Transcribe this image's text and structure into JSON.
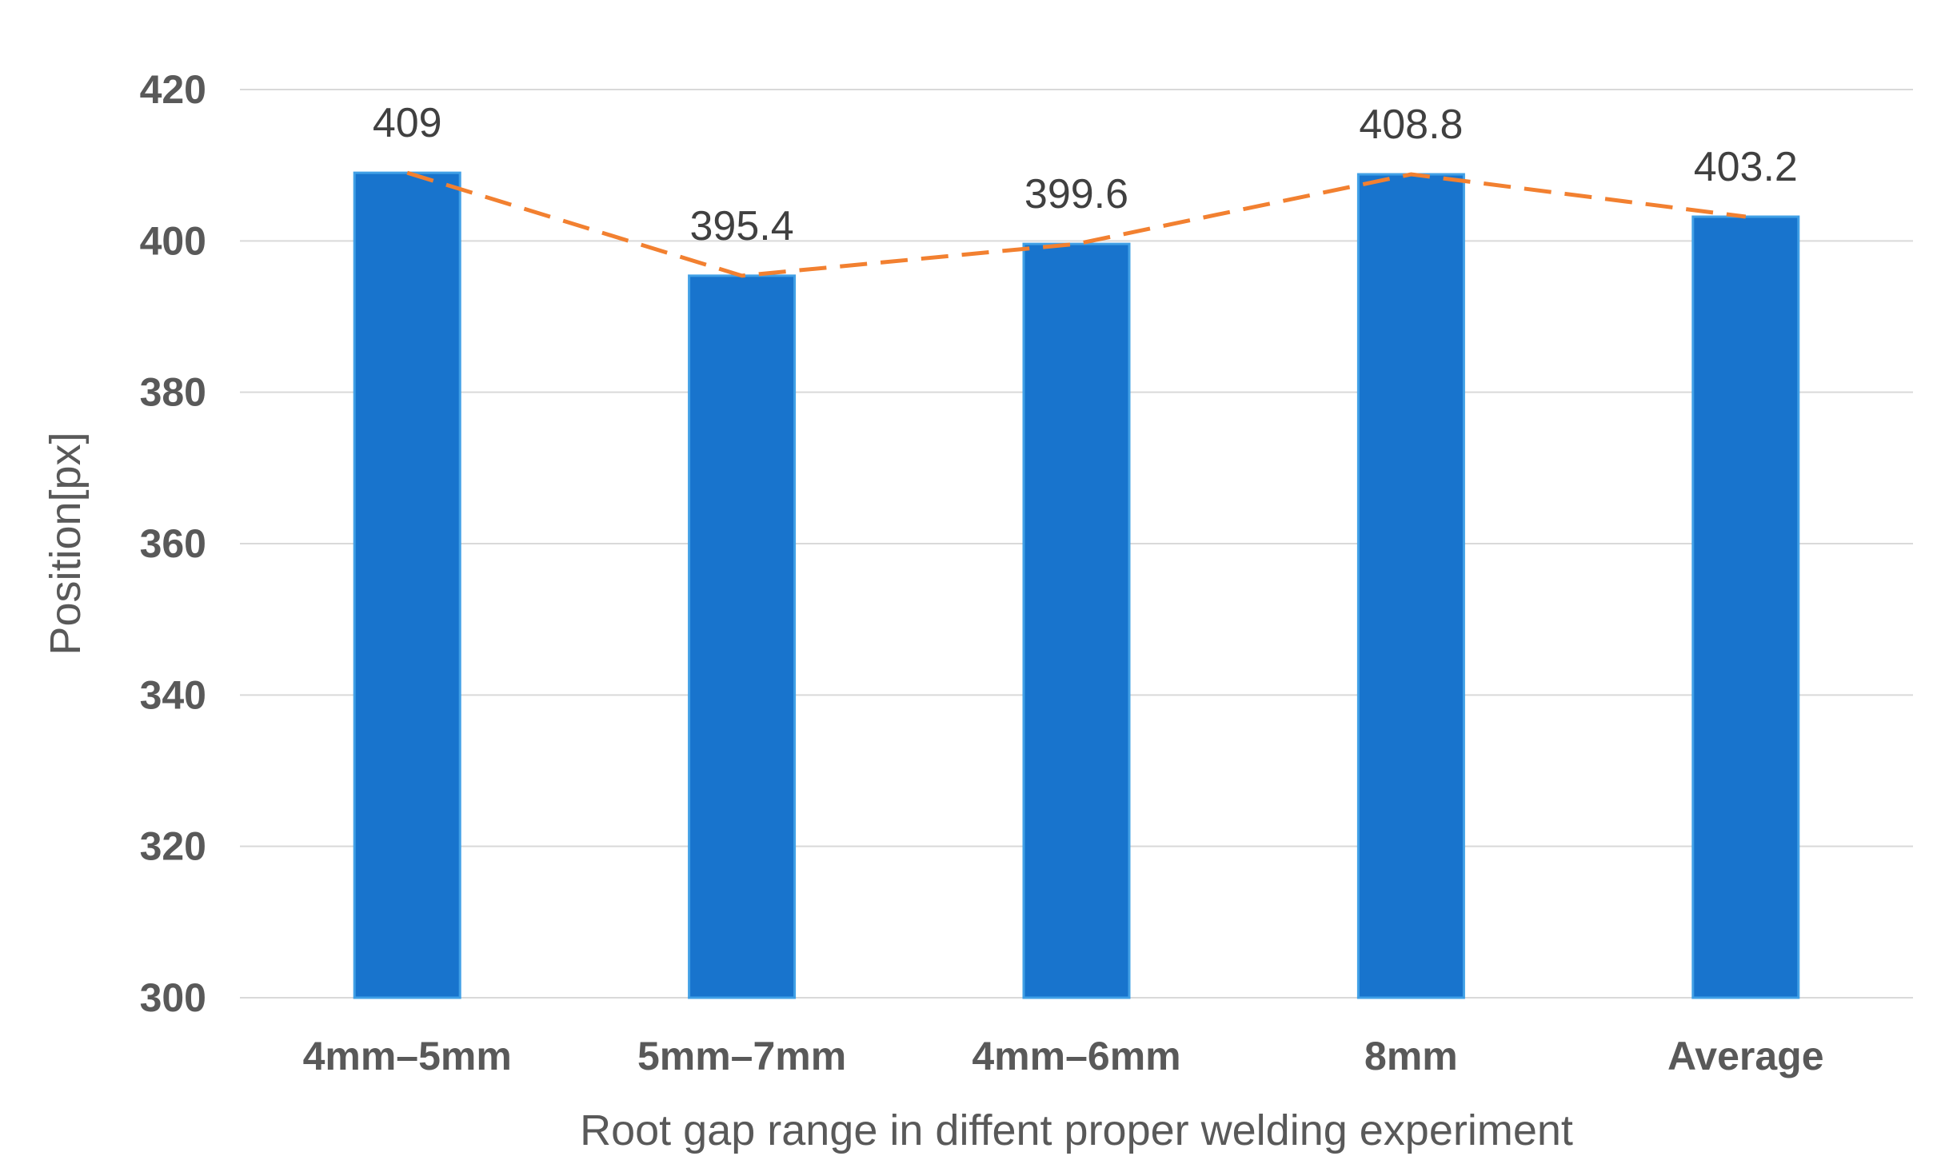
{
  "chart_data": {
    "type": "bar",
    "title": "",
    "xlabel": "Root gap range in diffent proper welding experiment",
    "ylabel": "Position[px]",
    "ylim": [
      300,
      420
    ],
    "yticks": [
      300,
      320,
      340,
      360,
      380,
      400,
      420
    ],
    "ytick_labels": [
      "300",
      "320",
      "340",
      "360",
      "380",
      "400",
      "420"
    ],
    "grid": true,
    "categories": [
      "4mm–5mm",
      "5mm–7mm",
      "4mm–6mm",
      "8mm",
      "Average"
    ],
    "values": [
      409,
      395.4,
      399.6,
      408.8,
      403.2
    ],
    "data_labels": [
      "409",
      "395.4",
      "399.6",
      "408.8",
      "403.2"
    ],
    "overlay_line": {
      "style": "dashed",
      "values": [
        409,
        395.4,
        399.6,
        408.8,
        403.2
      ]
    },
    "colors": {
      "bar": "#1874CD",
      "bar_edge": "#41A0E6",
      "line": "#F28030",
      "grid": "#D9D9D9",
      "text": "#595959"
    }
  }
}
